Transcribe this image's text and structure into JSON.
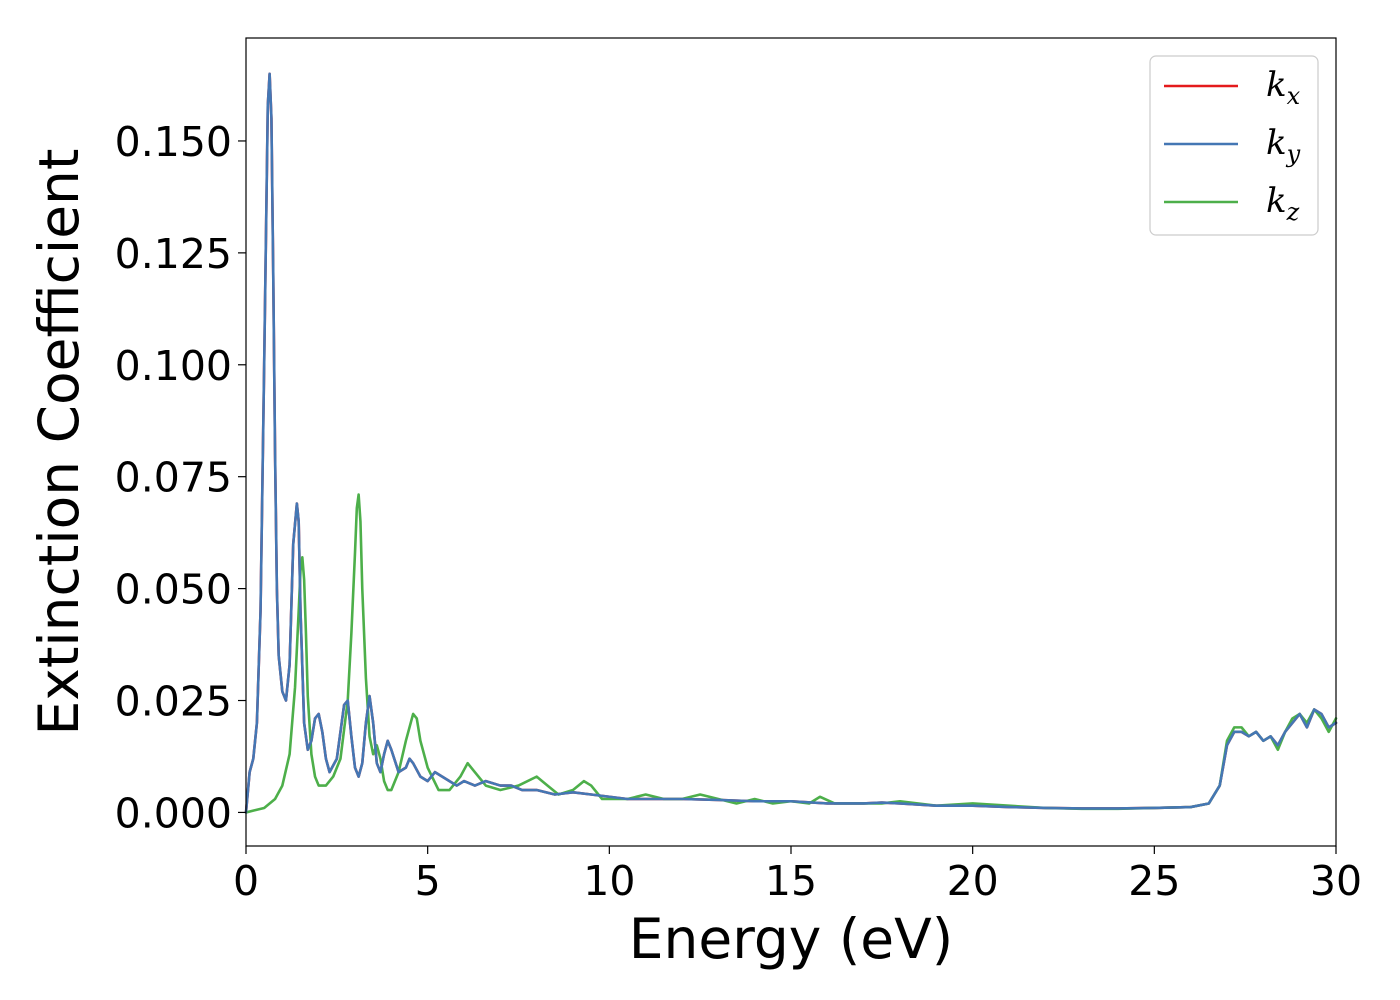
{
  "chart_data": {
    "type": "line",
    "xlabel": "Energy (eV)",
    "ylabel": "Extinction Coefficient",
    "xlim": [
      0,
      30
    ],
    "ylim": [
      -0.0075,
      0.173
    ],
    "xticks": [
      0,
      5,
      10,
      15,
      20,
      25,
      30
    ],
    "xtick_labels": [
      "0",
      "5",
      "10",
      "15",
      "20",
      "25",
      "30"
    ],
    "yticks": [
      0.0,
      0.025,
      0.05,
      0.075,
      0.1,
      0.125,
      0.15
    ],
    "ytick_labels": [
      "0.000",
      "0.025",
      "0.050",
      "0.075",
      "0.100",
      "0.125",
      "0.150"
    ],
    "grid": false,
    "legend_position": "top-right",
    "series": [
      {
        "name": "k_x",
        "label_main": "k",
        "label_sub": "x",
        "color": "#e41a1c",
        "x": [
          0.0,
          0.1,
          0.2,
          0.3,
          0.4,
          0.5,
          0.6,
          0.65,
          0.7,
          0.75,
          0.8,
          0.85,
          0.9,
          1.0,
          1.1,
          1.2,
          1.3,
          1.4,
          1.45,
          1.5,
          1.6,
          1.7,
          1.8,
          1.9,
          2.0,
          2.1,
          2.2,
          2.3,
          2.5,
          2.7,
          2.8,
          2.9,
          3.0,
          3.1,
          3.2,
          3.3,
          3.4,
          3.5,
          3.6,
          3.7,
          3.8,
          3.9,
          4.0,
          4.2,
          4.4,
          4.5,
          4.6,
          4.8,
          5.0,
          5.2,
          5.4,
          5.6,
          5.8,
          6.0,
          6.3,
          6.6,
          7.0,
          7.3,
          7.6,
          8.0,
          8.5,
          9.0,
          9.5,
          10.0,
          10.5,
          11.0,
          12.0,
          13.0,
          14.0,
          15.0,
          16.0,
          17.0,
          17.5,
          18.0,
          19.0,
          20.0,
          21.0,
          22.0,
          23.0,
          24.0,
          25.0,
          26.0,
          26.5,
          26.8,
          27.0,
          27.2,
          27.4,
          27.6,
          27.8,
          28.0,
          28.2,
          28.4,
          28.6,
          28.8,
          29.0,
          29.2,
          29.4,
          29.6,
          29.8,
          30.0
        ],
        "values": [
          0.0,
          0.009,
          0.012,
          0.02,
          0.045,
          0.1,
          0.158,
          0.165,
          0.155,
          0.12,
          0.08,
          0.05,
          0.035,
          0.027,
          0.025,
          0.033,
          0.06,
          0.069,
          0.065,
          0.045,
          0.02,
          0.014,
          0.016,
          0.021,
          0.022,
          0.018,
          0.012,
          0.009,
          0.012,
          0.024,
          0.025,
          0.017,
          0.01,
          0.008,
          0.011,
          0.02,
          0.026,
          0.02,
          0.011,
          0.009,
          0.013,
          0.016,
          0.014,
          0.009,
          0.01,
          0.012,
          0.011,
          0.008,
          0.007,
          0.009,
          0.008,
          0.007,
          0.006,
          0.007,
          0.006,
          0.007,
          0.006,
          0.006,
          0.005,
          0.005,
          0.004,
          0.0045,
          0.004,
          0.0035,
          0.003,
          0.003,
          0.003,
          0.0028,
          0.0025,
          0.0025,
          0.002,
          0.002,
          0.0022,
          0.002,
          0.0015,
          0.0015,
          0.0012,
          0.001,
          0.0009,
          0.0009,
          0.001,
          0.0012,
          0.002,
          0.006,
          0.015,
          0.018,
          0.018,
          0.017,
          0.018,
          0.016,
          0.017,
          0.015,
          0.018,
          0.02,
          0.022,
          0.019,
          0.023,
          0.022,
          0.019,
          0.02
        ]
      },
      {
        "name": "k_y",
        "label_main": "k",
        "label_sub": "y",
        "color": "#4477b4",
        "x": [
          0.0,
          0.1,
          0.2,
          0.3,
          0.4,
          0.5,
          0.6,
          0.65,
          0.7,
          0.75,
          0.8,
          0.85,
          0.9,
          1.0,
          1.1,
          1.2,
          1.3,
          1.4,
          1.45,
          1.5,
          1.6,
          1.7,
          1.8,
          1.9,
          2.0,
          2.1,
          2.2,
          2.3,
          2.5,
          2.7,
          2.8,
          2.9,
          3.0,
          3.1,
          3.2,
          3.3,
          3.4,
          3.5,
          3.6,
          3.7,
          3.8,
          3.9,
          4.0,
          4.2,
          4.4,
          4.5,
          4.6,
          4.8,
          5.0,
          5.2,
          5.4,
          5.6,
          5.8,
          6.0,
          6.3,
          6.6,
          7.0,
          7.3,
          7.6,
          8.0,
          8.5,
          9.0,
          9.5,
          10.0,
          10.5,
          11.0,
          12.0,
          13.0,
          14.0,
          15.0,
          16.0,
          17.0,
          17.5,
          18.0,
          19.0,
          20.0,
          21.0,
          22.0,
          23.0,
          24.0,
          25.0,
          26.0,
          26.5,
          26.8,
          27.0,
          27.2,
          27.4,
          27.6,
          27.8,
          28.0,
          28.2,
          28.4,
          28.6,
          28.8,
          29.0,
          29.2,
          29.4,
          29.6,
          29.8,
          30.0
        ],
        "values": [
          0.0,
          0.009,
          0.012,
          0.02,
          0.045,
          0.1,
          0.158,
          0.165,
          0.155,
          0.12,
          0.08,
          0.05,
          0.035,
          0.027,
          0.025,
          0.033,
          0.06,
          0.069,
          0.065,
          0.045,
          0.02,
          0.014,
          0.016,
          0.021,
          0.022,
          0.018,
          0.012,
          0.009,
          0.012,
          0.024,
          0.025,
          0.017,
          0.01,
          0.008,
          0.011,
          0.02,
          0.026,
          0.02,
          0.011,
          0.009,
          0.013,
          0.016,
          0.014,
          0.009,
          0.01,
          0.012,
          0.011,
          0.008,
          0.007,
          0.009,
          0.008,
          0.007,
          0.006,
          0.007,
          0.006,
          0.007,
          0.006,
          0.006,
          0.005,
          0.005,
          0.004,
          0.0045,
          0.004,
          0.0035,
          0.003,
          0.003,
          0.003,
          0.0028,
          0.0025,
          0.0025,
          0.002,
          0.002,
          0.0022,
          0.002,
          0.0015,
          0.0015,
          0.0012,
          0.001,
          0.0009,
          0.0009,
          0.001,
          0.0012,
          0.002,
          0.006,
          0.015,
          0.018,
          0.018,
          0.017,
          0.018,
          0.016,
          0.017,
          0.015,
          0.018,
          0.02,
          0.022,
          0.019,
          0.023,
          0.022,
          0.019,
          0.02
        ]
      },
      {
        "name": "k_z",
        "label_main": "k",
        "label_sub": "z",
        "color": "#4daf4a",
        "x": [
          0.0,
          0.5,
          0.8,
          1.0,
          1.2,
          1.35,
          1.45,
          1.5,
          1.55,
          1.6,
          1.65,
          1.7,
          1.8,
          1.9,
          2.0,
          2.2,
          2.4,
          2.6,
          2.8,
          2.9,
          3.0,
          3.05,
          3.1,
          3.15,
          3.2,
          3.3,
          3.4,
          3.5,
          3.6,
          3.7,
          3.8,
          3.9,
          4.0,
          4.2,
          4.4,
          4.6,
          4.7,
          4.8,
          5.0,
          5.3,
          5.6,
          5.9,
          6.1,
          6.3,
          6.6,
          7.0,
          7.5,
          8.0,
          8.3,
          8.6,
          9.0,
          9.3,
          9.5,
          9.8,
          10.5,
          11.0,
          11.5,
          12.0,
          12.5,
          13.0,
          13.5,
          14.0,
          14.5,
          15.0,
          15.5,
          15.8,
          16.2,
          17.0,
          17.5,
          18.0,
          19.0,
          20.0,
          21.0,
          22.0,
          23.0,
          24.0,
          25.0,
          26.0,
          26.5,
          26.8,
          27.0,
          27.2,
          27.4,
          27.6,
          27.8,
          28.0,
          28.2,
          28.4,
          28.6,
          28.8,
          29.0,
          29.2,
          29.4,
          29.6,
          29.8,
          30.0
        ],
        "values": [
          0.0,
          0.001,
          0.003,
          0.006,
          0.013,
          0.028,
          0.045,
          0.054,
          0.057,
          0.052,
          0.04,
          0.026,
          0.013,
          0.008,
          0.006,
          0.006,
          0.008,
          0.012,
          0.025,
          0.04,
          0.058,
          0.068,
          0.071,
          0.065,
          0.05,
          0.03,
          0.017,
          0.013,
          0.015,
          0.012,
          0.007,
          0.005,
          0.005,
          0.009,
          0.016,
          0.022,
          0.021,
          0.016,
          0.01,
          0.005,
          0.005,
          0.008,
          0.011,
          0.009,
          0.006,
          0.005,
          0.006,
          0.008,
          0.006,
          0.004,
          0.005,
          0.007,
          0.006,
          0.003,
          0.003,
          0.004,
          0.003,
          0.003,
          0.004,
          0.003,
          0.002,
          0.003,
          0.002,
          0.0025,
          0.002,
          0.0035,
          0.002,
          0.002,
          0.002,
          0.0025,
          0.0015,
          0.002,
          0.0015,
          0.001,
          0.0008,
          0.0008,
          0.001,
          0.0012,
          0.002,
          0.006,
          0.016,
          0.019,
          0.019,
          0.017,
          0.018,
          0.016,
          0.017,
          0.014,
          0.018,
          0.021,
          0.022,
          0.02,
          0.023,
          0.021,
          0.018,
          0.021
        ]
      }
    ]
  }
}
